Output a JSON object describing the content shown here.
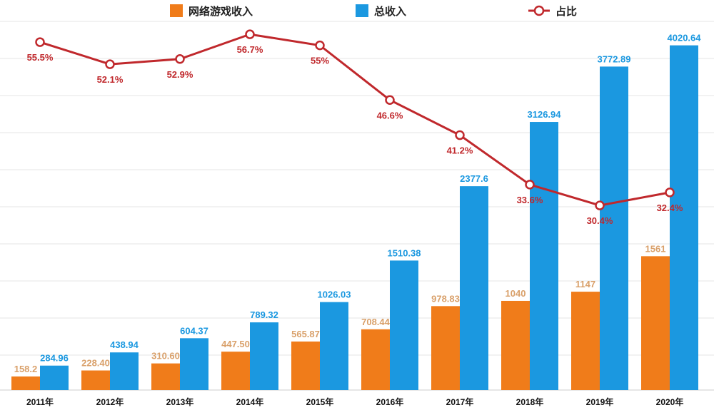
{
  "chart_data": {
    "type": "bar",
    "categories": [
      "2011年",
      "2012年",
      "2013年",
      "2014年",
      "2015年",
      "2016年",
      "2017年",
      "2018年",
      "2019年",
      "2020年"
    ],
    "series": [
      {
        "name": "网络游戏收入",
        "type": "bar",
        "color": "#f07c1a",
        "values": [
          158.2,
          228.4,
          310.6,
          447.5,
          565.87,
          708.44,
          978.83,
          1040,
          1147,
          1561
        ],
        "labels": [
          "158.2",
          "228.40",
          "310.60",
          "447.50",
          "565.87",
          "708.44",
          "978.83",
          "1040",
          "1147",
          "1561"
        ]
      },
      {
        "name": "总收入",
        "type": "bar",
        "color": "#1b98e0",
        "values": [
          284.96,
          438.94,
          604.37,
          789.32,
          1026.03,
          1510.38,
          2377.6,
          3126.94,
          3772.89,
          4020.64
        ],
        "labels": [
          "284.96",
          "438.94",
          "604.37",
          "789.32",
          "1026.03",
          "1510.38",
          "2377.6",
          "3126.94",
          "3772.89",
          "4020.64"
        ]
      },
      {
        "name": "占比",
        "type": "line",
        "color": "#c0282c",
        "unit": "%",
        "values": [
          55.5,
          52.1,
          52.9,
          56.7,
          55,
          46.6,
          41.2,
          33.6,
          30.4,
          32.4
        ],
        "labels": [
          "55.5%",
          "52.1%",
          "52.9%",
          "56.7%",
          "55%",
          "46.6%",
          "41.2%",
          "33.6%",
          "30.4%",
          "32.4%"
        ]
      }
    ],
    "ylim": [
      0,
      4300
    ],
    "y2lim": [
      15,
      60
    ],
    "grid": true,
    "legend": "top"
  }
}
